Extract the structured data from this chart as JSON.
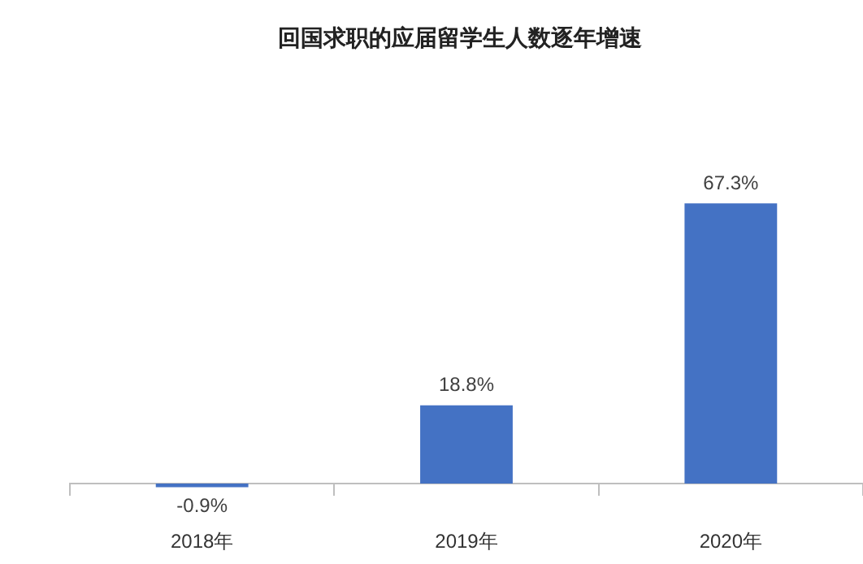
{
  "chart_data": {
    "type": "bar",
    "title": "回国求职的应届留学生人数逐年增速",
    "categories": [
      "2018年",
      "2019年",
      "2020年"
    ],
    "values": [
      -0.9,
      18.8,
      67.3
    ],
    "value_labels": [
      "-0.9%",
      "18.8%",
      "67.3%"
    ],
    "color": "#4472c4",
    "grid": false,
    "legend": false
  }
}
